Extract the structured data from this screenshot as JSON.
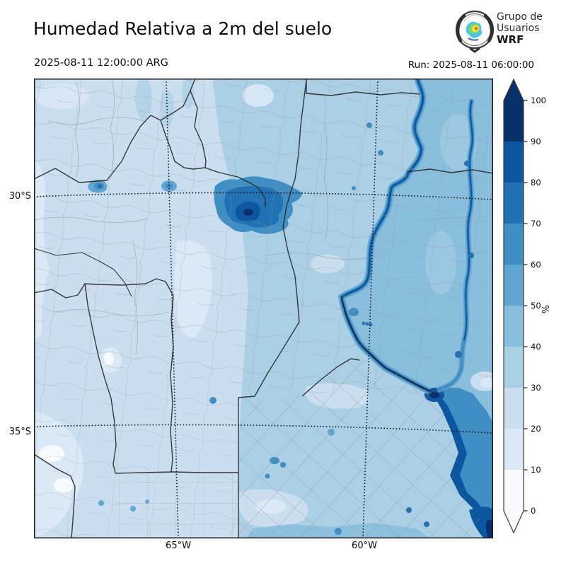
{
  "header": {
    "title": "Humedad Relativa a 2m del suelo",
    "valid_time": "2025-08-11 12:00:00 ARG",
    "run_time": "Run: 2025-08-11 06:00:00",
    "logo": {
      "line1": "Grupo de",
      "line2": "Usuarios",
      "line3": "WRF"
    }
  },
  "map": {
    "lat_labels": [
      "30°S",
      "35°S"
    ],
    "lon_labels": [
      "65°W",
      "60°W"
    ]
  },
  "colorbar": {
    "unit": "%",
    "range": [
      0,
      100
    ],
    "tick_values": [
      0,
      10,
      20,
      30,
      40,
      50,
      60,
      70,
      80,
      90,
      100
    ],
    "colors": [
      "#f7fbff",
      "#dbe9f6",
      "#cadef0",
      "#abd0e6",
      "#89bedc",
      "#60a6d2",
      "#3f8ec4",
      "#2171b5",
      "#0d57a1",
      "#08306b"
    ]
  },
  "palette": {
    "land_base": "#cadef0",
    "wet_east": "#89bedc",
    "estuary_deep": "#08306b",
    "boundary_province": "#2b2b2b",
    "boundary_department": "#929292",
    "gridline": "#111111"
  }
}
